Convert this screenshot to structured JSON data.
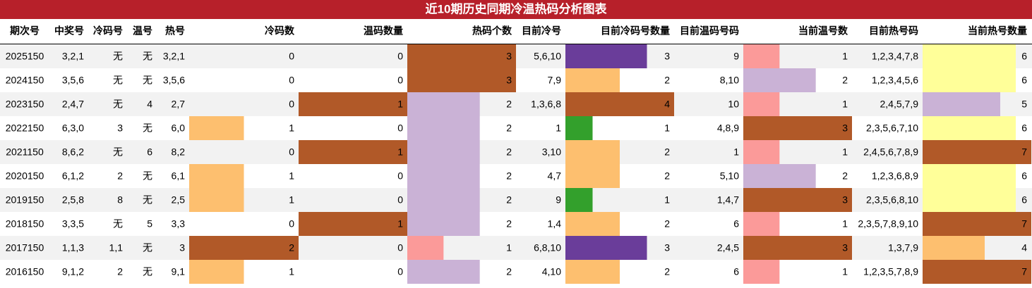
{
  "title": "近10期历史同期冷温热码分析图表",
  "table": {
    "columns": [
      {
        "label": "期次号",
        "width": 70
      },
      {
        "label": "中奖号",
        "width": 55
      },
      {
        "label": "冷码号",
        "width": 55
      },
      {
        "label": "温号",
        "width": 42
      },
      {
        "label": "热号",
        "width": 46
      },
      {
        "label": "冷码数",
        "width": 155,
        "colors": {
          "1": "#fdbf6f",
          "2": "#b15928"
        }
      },
      {
        "label": "温码数量",
        "width": 154,
        "colors": {
          "1": "#b15928"
        }
      },
      {
        "label": "热码个数",
        "width": 154,
        "colors": {
          "1": "#fb9a99",
          "2": "#cab2d6",
          "3": "#b15928"
        }
      },
      {
        "label": "目前冷号",
        "width": 70
      },
      {
        "label": "目前冷码号数量",
        "width": 154,
        "colors": {
          "1": "#33a02c",
          "2": "#fdbf6f",
          "3": "#6a3d9a",
          "4": "#b15928"
        }
      },
      {
        "label": "目前温码号码",
        "width": 98
      },
      {
        "label": "当前温号数",
        "width": 154,
        "colors": {
          "1": "#fb9a99",
          "2": "#cab2d6",
          "3": "#b15928"
        }
      },
      {
        "label": "目前热号码",
        "width": 100
      },
      {
        "label": "当前热号数量",
        "width": 154,
        "colors": {
          "4": "#fdbf6f",
          "5": "#cab2d6",
          "6": "#ffff99",
          "7": "#b15928"
        }
      }
    ],
    "rows": [
      [
        "2025150",
        "3,2,1",
        "无",
        "无",
        "3,2,1",
        0,
        0,
        3,
        "5,6,10",
        3,
        "9",
        1,
        "1,2,3,4,7,8",
        6
      ],
      [
        "2024150",
        "3,5,6",
        "无",
        "无",
        "3,5,6",
        0,
        0,
        3,
        "7,9",
        2,
        "8,10",
        2,
        "1,2,3,4,5,6",
        6
      ],
      [
        "2023150",
        "2,4,7",
        "无",
        "4",
        "2,7",
        0,
        1,
        2,
        "1,3,6,8",
        4,
        "10",
        1,
        "2,4,5,7,9",
        5
      ],
      [
        "2022150",
        "6,3,0",
        "3",
        "无",
        "6,0",
        1,
        0,
        2,
        "1",
        1,
        "4,8,9",
        3,
        "2,3,5,6,7,10",
        6
      ],
      [
        "2021150",
        "8,6,2",
        "无",
        "6",
        "8,2",
        0,
        1,
        2,
        "3,10",
        2,
        "1",
        1,
        "2,4,5,6,7,8,9",
        7
      ],
      [
        "2020150",
        "6,1,2",
        "2",
        "无",
        "6,1",
        1,
        0,
        2,
        "4,7",
        2,
        "5,10",
        2,
        "1,2,3,6,8,9",
        6
      ],
      [
        "2019150",
        "2,5,8",
        "8",
        "无",
        "2,5",
        1,
        0,
        2,
        "9",
        1,
        "1,4,7",
        3,
        "2,3,5,6,8,10",
        6
      ],
      [
        "2018150",
        "3,3,5",
        "无",
        "5",
        "3,3",
        0,
        1,
        2,
        "1,4",
        2,
        "6",
        1,
        "2,3,5,7,8,9,10",
        7
      ],
      [
        "2017150",
        "1,1,3",
        "1,1",
        "无",
        "3",
        2,
        0,
        1,
        "6,8,10",
        3,
        "2,4,5",
        3,
        "1,3,7,9",
        4
      ],
      [
        "2016150",
        "9,1,2",
        "2",
        "无",
        "9,1",
        1,
        0,
        2,
        "4,10",
        2,
        "6",
        1,
        "1,2,3,5,7,8,9",
        7
      ]
    ]
  }
}
